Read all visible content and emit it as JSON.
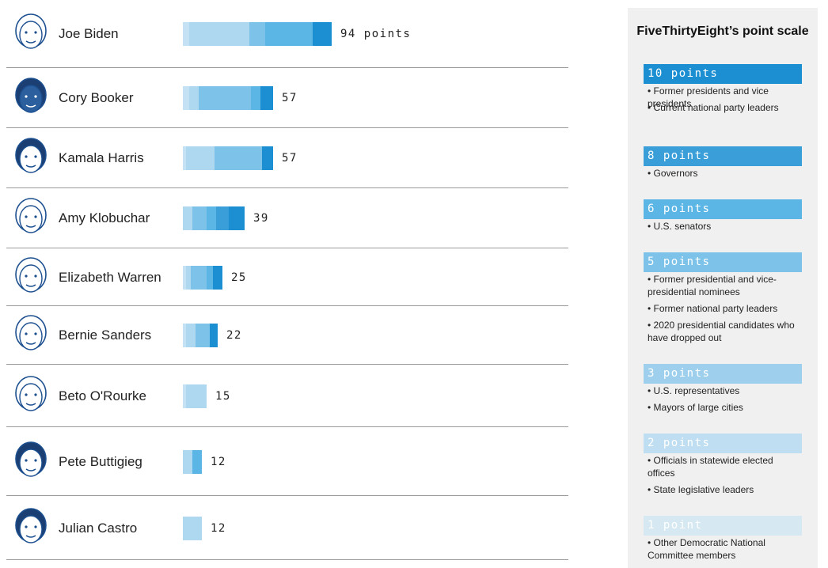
{
  "chart_data": {
    "type": "bar",
    "title": "",
    "xlabel": "",
    "ylabel": "",
    "xlim": [
      0,
      94
    ],
    "unit_label": "points",
    "categories": [
      "Joe Biden",
      "Cory Booker",
      "Kamala Harris",
      "Amy Klobuchar",
      "Elizabeth Warren",
      "Bernie Sanders",
      "Beto O'Rourke",
      "Pete Buttigieg",
      "Julian Castro"
    ],
    "values": [
      94,
      57,
      57,
      39,
      25,
      22,
      15,
      12,
      12
    ],
    "score_labels": [
      "94 points",
      "57",
      "57",
      "39",
      "25",
      "22",
      "15",
      "12",
      "12"
    ],
    "series": [
      {
        "name": "1 point",
        "color": "#d3e7f3",
        "values": [
          0,
          0,
          0,
          0,
          0,
          0,
          0,
          0,
          0
        ]
      },
      {
        "name": "2 points",
        "color": "#c5e2f4",
        "values": [
          4,
          4,
          2,
          0,
          2,
          2,
          2,
          0,
          0
        ]
      },
      {
        "name": "3 points",
        "color": "#aed8f0",
        "values": [
          38,
          6,
          18,
          6,
          3,
          6,
          13,
          6,
          12
        ]
      },
      {
        "name": "5 points",
        "color": "#7cc2e9",
        "values": [
          10,
          33,
          30,
          9,
          10,
          9,
          0,
          0,
          0
        ]
      },
      {
        "name": "6 points",
        "color": "#5bb5e5",
        "values": [
          30,
          6,
          0,
          6,
          4,
          0,
          0,
          6,
          0
        ]
      },
      {
        "name": "8 points",
        "color": "#3a9fd9",
        "values": [
          0,
          0,
          0,
          8,
          0,
          0,
          0,
          0,
          0
        ]
      },
      {
        "name": "10 points",
        "color": "#1b8fd2",
        "values": [
          12,
          8,
          7,
          10,
          6,
          5,
          0,
          0,
          0
        ]
      }
    ]
  },
  "legend": {
    "title": "FiveThirtyEight’s point scale",
    "tiers": [
      {
        "label": "10 points",
        "color": "#1b8fd2",
        "items": [
          "• Former presidents and vice presidents",
          "• Current national party leaders"
        ]
      },
      {
        "label": "8 points",
        "color": "#3a9fd9",
        "items": [
          "• Governors"
        ]
      },
      {
        "label": "6 points",
        "color": "#5bb5e5",
        "items": [
          "• U.S. senators"
        ]
      },
      {
        "label": "5 points",
        "color": "#7cc2e9",
        "items": [
          "• Former presidential and vice-presidential nominees",
          "• Former national party leaders",
          "• 2020 presidential candidates who have dropped out"
        ]
      },
      {
        "label": "3 points",
        "color": "#9ed0ee",
        "items": [
          "• U.S. representatives",
          "• Mayors of large cities"
        ]
      },
      {
        "label": "2 points",
        "color": "#c0def1",
        "items": [
          "• Officials in statewide elected offices",
          "• State legislative leaders"
        ]
      },
      {
        "label": "1 point",
        "color": "#d6e8f2",
        "items": [
          "• Other Democratic National Committee members"
        ]
      }
    ]
  }
}
